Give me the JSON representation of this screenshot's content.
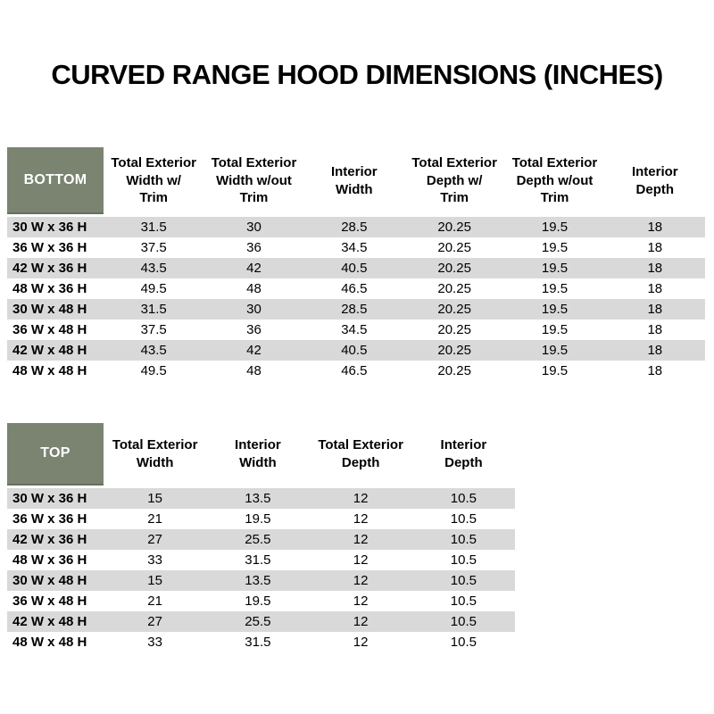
{
  "page": {
    "title": "CURVED RANGE HOOD DIMENSIONS (INCHES)"
  },
  "colors": {
    "accent_green": "#7A8471",
    "accent_green_edge": "#68705E",
    "stripe_gray": "#D9D9D9",
    "corner_text": "#FFFFFF",
    "body_text": "#000000"
  },
  "bottom_table": {
    "corner_label": "BOTTOM",
    "columns": [
      "Total Exterior\nWidth w/\nTrim",
      "Total Exterior\nWidth w/out\nTrim",
      "Interior\nWidth",
      "Total Exterior\nDepth w/\nTrim",
      "Total Exterior\nDepth w/out\nTrim",
      "Interior\nDepth"
    ],
    "rows": [
      {
        "label": "30 W x 36 H",
        "values": [
          "31.5",
          "30",
          "28.5",
          "20.25",
          "19.5",
          "18"
        ]
      },
      {
        "label": "36 W x 36 H",
        "values": [
          "37.5",
          "36",
          "34.5",
          "20.25",
          "19.5",
          "18"
        ]
      },
      {
        "label": "42 W x 36 H",
        "values": [
          "43.5",
          "42",
          "40.5",
          "20.25",
          "19.5",
          "18"
        ]
      },
      {
        "label": "48 W x 36 H",
        "values": [
          "49.5",
          "48",
          "46.5",
          "20.25",
          "19.5",
          "18"
        ]
      },
      {
        "label": "30 W x 48 H",
        "values": [
          "31.5",
          "30",
          "28.5",
          "20.25",
          "19.5",
          "18"
        ]
      },
      {
        "label": "36 W x 48 H",
        "values": [
          "37.5",
          "36",
          "34.5",
          "20.25",
          "19.5",
          "18"
        ]
      },
      {
        "label": "42 W x 48 H",
        "values": [
          "43.5",
          "42",
          "40.5",
          "20.25",
          "19.5",
          "18"
        ]
      },
      {
        "label": "48 W x 48 H",
        "values": [
          "49.5",
          "48",
          "46.5",
          "20.25",
          "19.5",
          "18"
        ]
      }
    ]
  },
  "top_table": {
    "corner_label": "TOP",
    "columns": [
      "Total Exterior\nWidth",
      "Interior\nWidth",
      "Total Exterior\nDepth",
      "Interior\nDepth"
    ],
    "rows": [
      {
        "label": "30 W x 36 H",
        "values": [
          "15",
          "13.5",
          "12",
          "10.5"
        ]
      },
      {
        "label": "36 W x 36 H",
        "values": [
          "21",
          "19.5",
          "12",
          "10.5"
        ]
      },
      {
        "label": "42 W x 36 H",
        "values": [
          "27",
          "25.5",
          "12",
          "10.5"
        ]
      },
      {
        "label": "48 W x 36 H",
        "values": [
          "33",
          "31.5",
          "12",
          "10.5"
        ]
      },
      {
        "label": "30 W x 48 H",
        "values": [
          "15",
          "13.5",
          "12",
          "10.5"
        ]
      },
      {
        "label": "36 W x 48 H",
        "values": [
          "21",
          "19.5",
          "12",
          "10.5"
        ]
      },
      {
        "label": "42 W x 48 H",
        "values": [
          "27",
          "25.5",
          "12",
          "10.5"
        ]
      },
      {
        "label": "48 W x 48 H",
        "values": [
          "33",
          "31.5",
          "12",
          "10.5"
        ]
      }
    ]
  }
}
